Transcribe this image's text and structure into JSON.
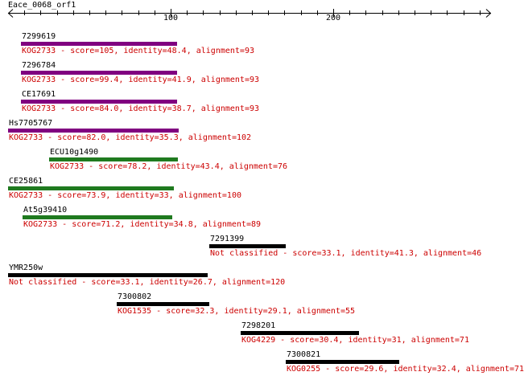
{
  "title": "Eace_0068_orf1",
  "axis": {
    "ticks": [
      {
        "value": 100,
        "label": "100"
      },
      {
        "value": 200,
        "label": "200"
      }
    ],
    "length": 297
  },
  "colors": {
    "purple": "#800080",
    "green": "#1f7a1f",
    "black": "#000000",
    "text_red": "#cc0000"
  },
  "hits": [
    {
      "name": "7299619",
      "start": 8,
      "end": 104,
      "color": "purple",
      "description": "KOG2733 - score=105, identity=48.4, alignment=93"
    },
    {
      "name": "7296784",
      "start": 8,
      "end": 104,
      "color": "purple",
      "description": "KOG2733 - score=99.4, identity=41.9, alignment=93"
    },
    {
      "name": "CE17691",
      "start": 8,
      "end": 104,
      "color": "purple",
      "description": "KOG2733 - score=84.0, identity=38.7, alignment=93"
    },
    {
      "name": "Hs7705767",
      "start": 0,
      "end": 105,
      "color": "purple",
      "description": "KOG2733 - score=82.0, identity=35.3, alignment=102"
    },
    {
      "name": "ECU10g1490",
      "start": 25,
      "end": 104,
      "color": "green",
      "description": "KOG2733 - score=78.2, identity=43.4, alignment=76"
    },
    {
      "name": "CE25861",
      "start": 0,
      "end": 102,
      "color": "green",
      "description": "KOG2733 - score=73.9, identity=33, alignment=100"
    },
    {
      "name": "At5g39410",
      "start": 9,
      "end": 101,
      "color": "green",
      "description": "KOG2733 - score=71.2, identity=34.8, alignment=89"
    },
    {
      "name": "7291399",
      "start": 124,
      "end": 171,
      "color": "black",
      "description": "Not classified - score=33.1, identity=41.3, alignment=46"
    },
    {
      "name": "YMR250w",
      "start": 0,
      "end": 123,
      "color": "black",
      "description": "Not classified - score=33.1, identity=26.7, alignment=120"
    },
    {
      "name": "7300802",
      "start": 67,
      "end": 124,
      "color": "black",
      "description": "KOG1535 - score=32.3, identity=29.1, alignment=55"
    },
    {
      "name": "7298201",
      "start": 143,
      "end": 216,
      "color": "black",
      "description": "KOG4229 - score=30.4, identity=31, alignment=71"
    },
    {
      "name": "7300821",
      "start": 171,
      "end": 241,
      "color": "black",
      "description": "KOG0255 - score=29.6, identity=32.4, alignment=71"
    }
  ]
}
